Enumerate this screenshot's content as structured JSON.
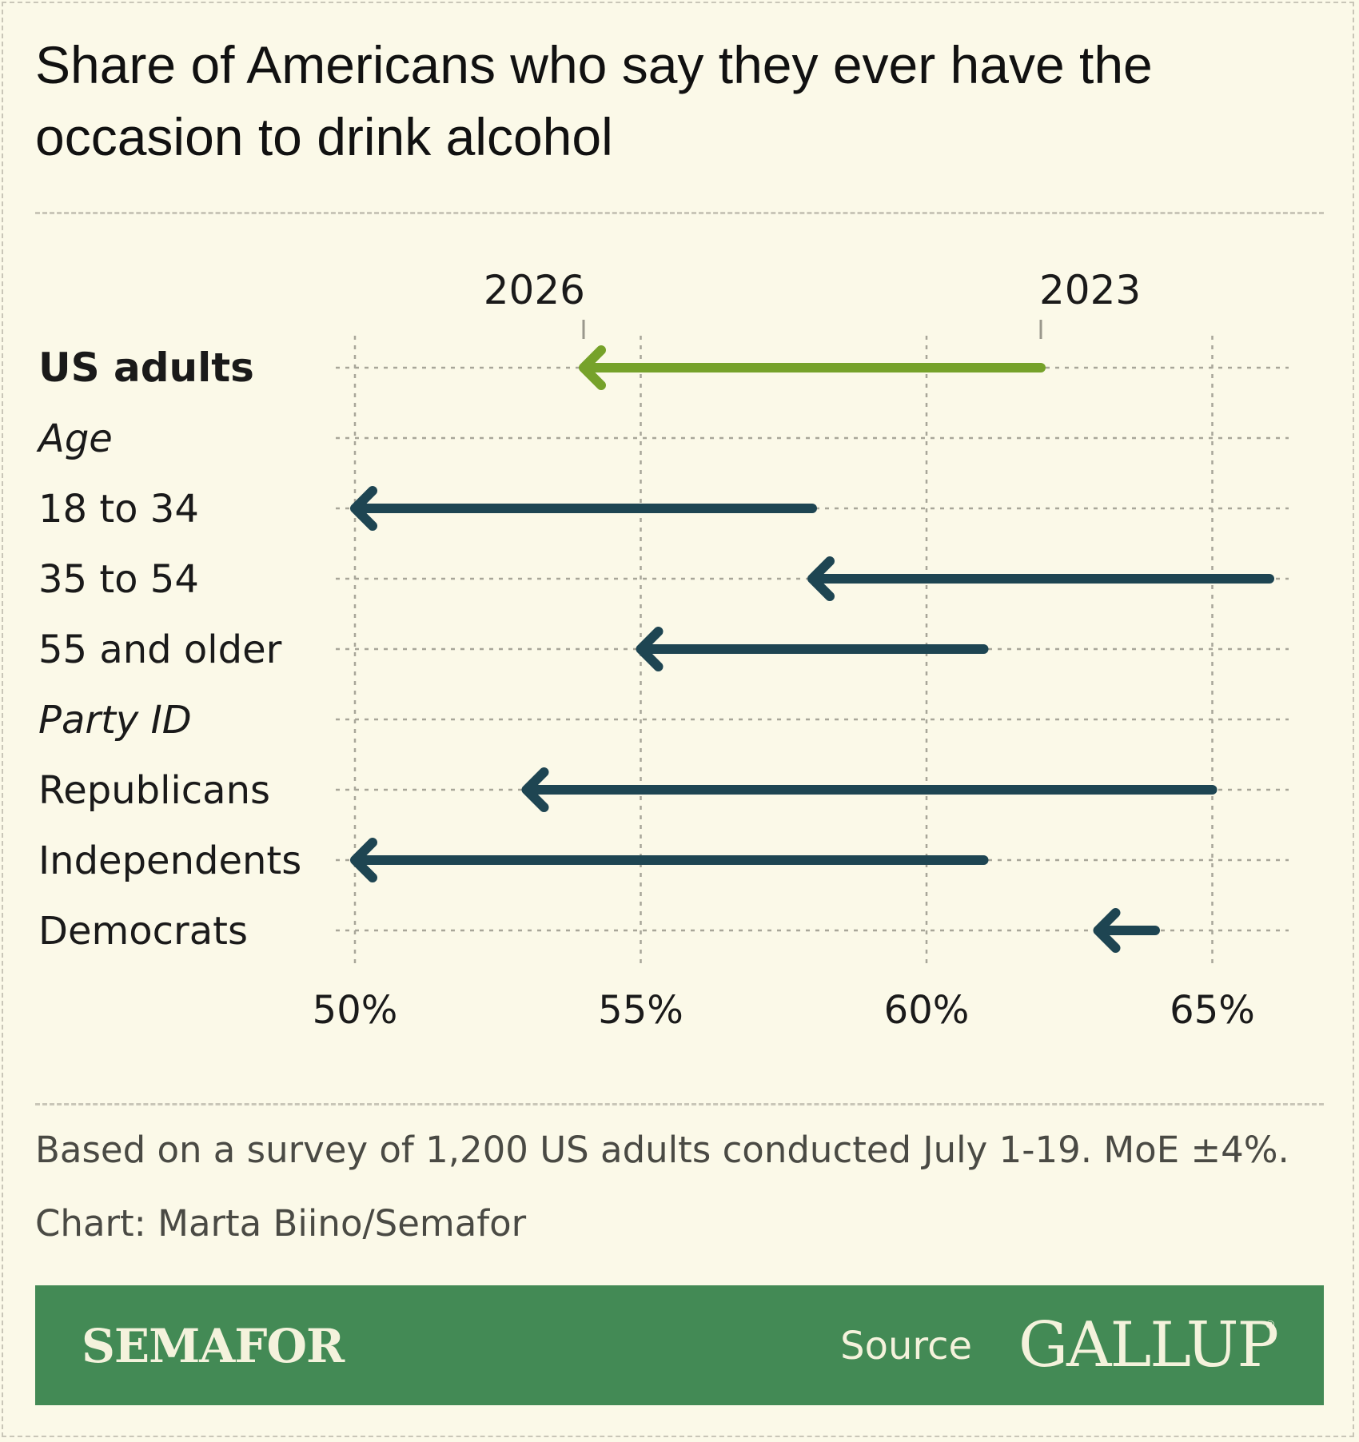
{
  "title": "Share of Americans who say they ever have the occasion to drink alcohol",
  "chart_data": {
    "type": "arrow",
    "series": [
      {
        "name": "2023"
      },
      {
        "name": "2026"
      }
    ],
    "xlim": [
      50,
      66
    ],
    "x_ticks": [
      50,
      55,
      60,
      65
    ],
    "x_tick_labels": [
      "50%",
      "55%",
      "60%",
      "65%"
    ],
    "grid": true,
    "rows": [
      {
        "label": "US adults",
        "style": "bold",
        "from": 62,
        "to": 54,
        "color": "#76a22a",
        "year_labels": true
      },
      {
        "label": "Age",
        "style": "italic"
      },
      {
        "label": "18 to 34",
        "style": "normal",
        "from": 58,
        "to": 50,
        "color": "#1e4552"
      },
      {
        "label": "35 to 54",
        "style": "normal",
        "from": 66,
        "to": 58,
        "color": "#1e4552"
      },
      {
        "label": "55 and older",
        "style": "normal",
        "from": 61,
        "to": 55,
        "color": "#1e4552"
      },
      {
        "label": "Party ID",
        "style": "italic"
      },
      {
        "label": "Republicans",
        "style": "normal",
        "from": 65,
        "to": 53,
        "color": "#1e4552"
      },
      {
        "label": "Independents",
        "style": "normal",
        "from": 61,
        "to": 50,
        "color": "#1e4552"
      },
      {
        "label": "Democrats",
        "style": "normal",
        "from": 64,
        "to": 63,
        "color": "#1e4552"
      }
    ]
  },
  "notes": {
    "survey": "Based on a survey of 1,200 US adults conducted July 1-19. MoE ±4%.",
    "credit": "Chart: Marta Biino/Semafor"
  },
  "footer": {
    "brand": "SEMAFOR",
    "source_label": "Source",
    "source_name": "GALLUP",
    "registered_mark": "®"
  }
}
